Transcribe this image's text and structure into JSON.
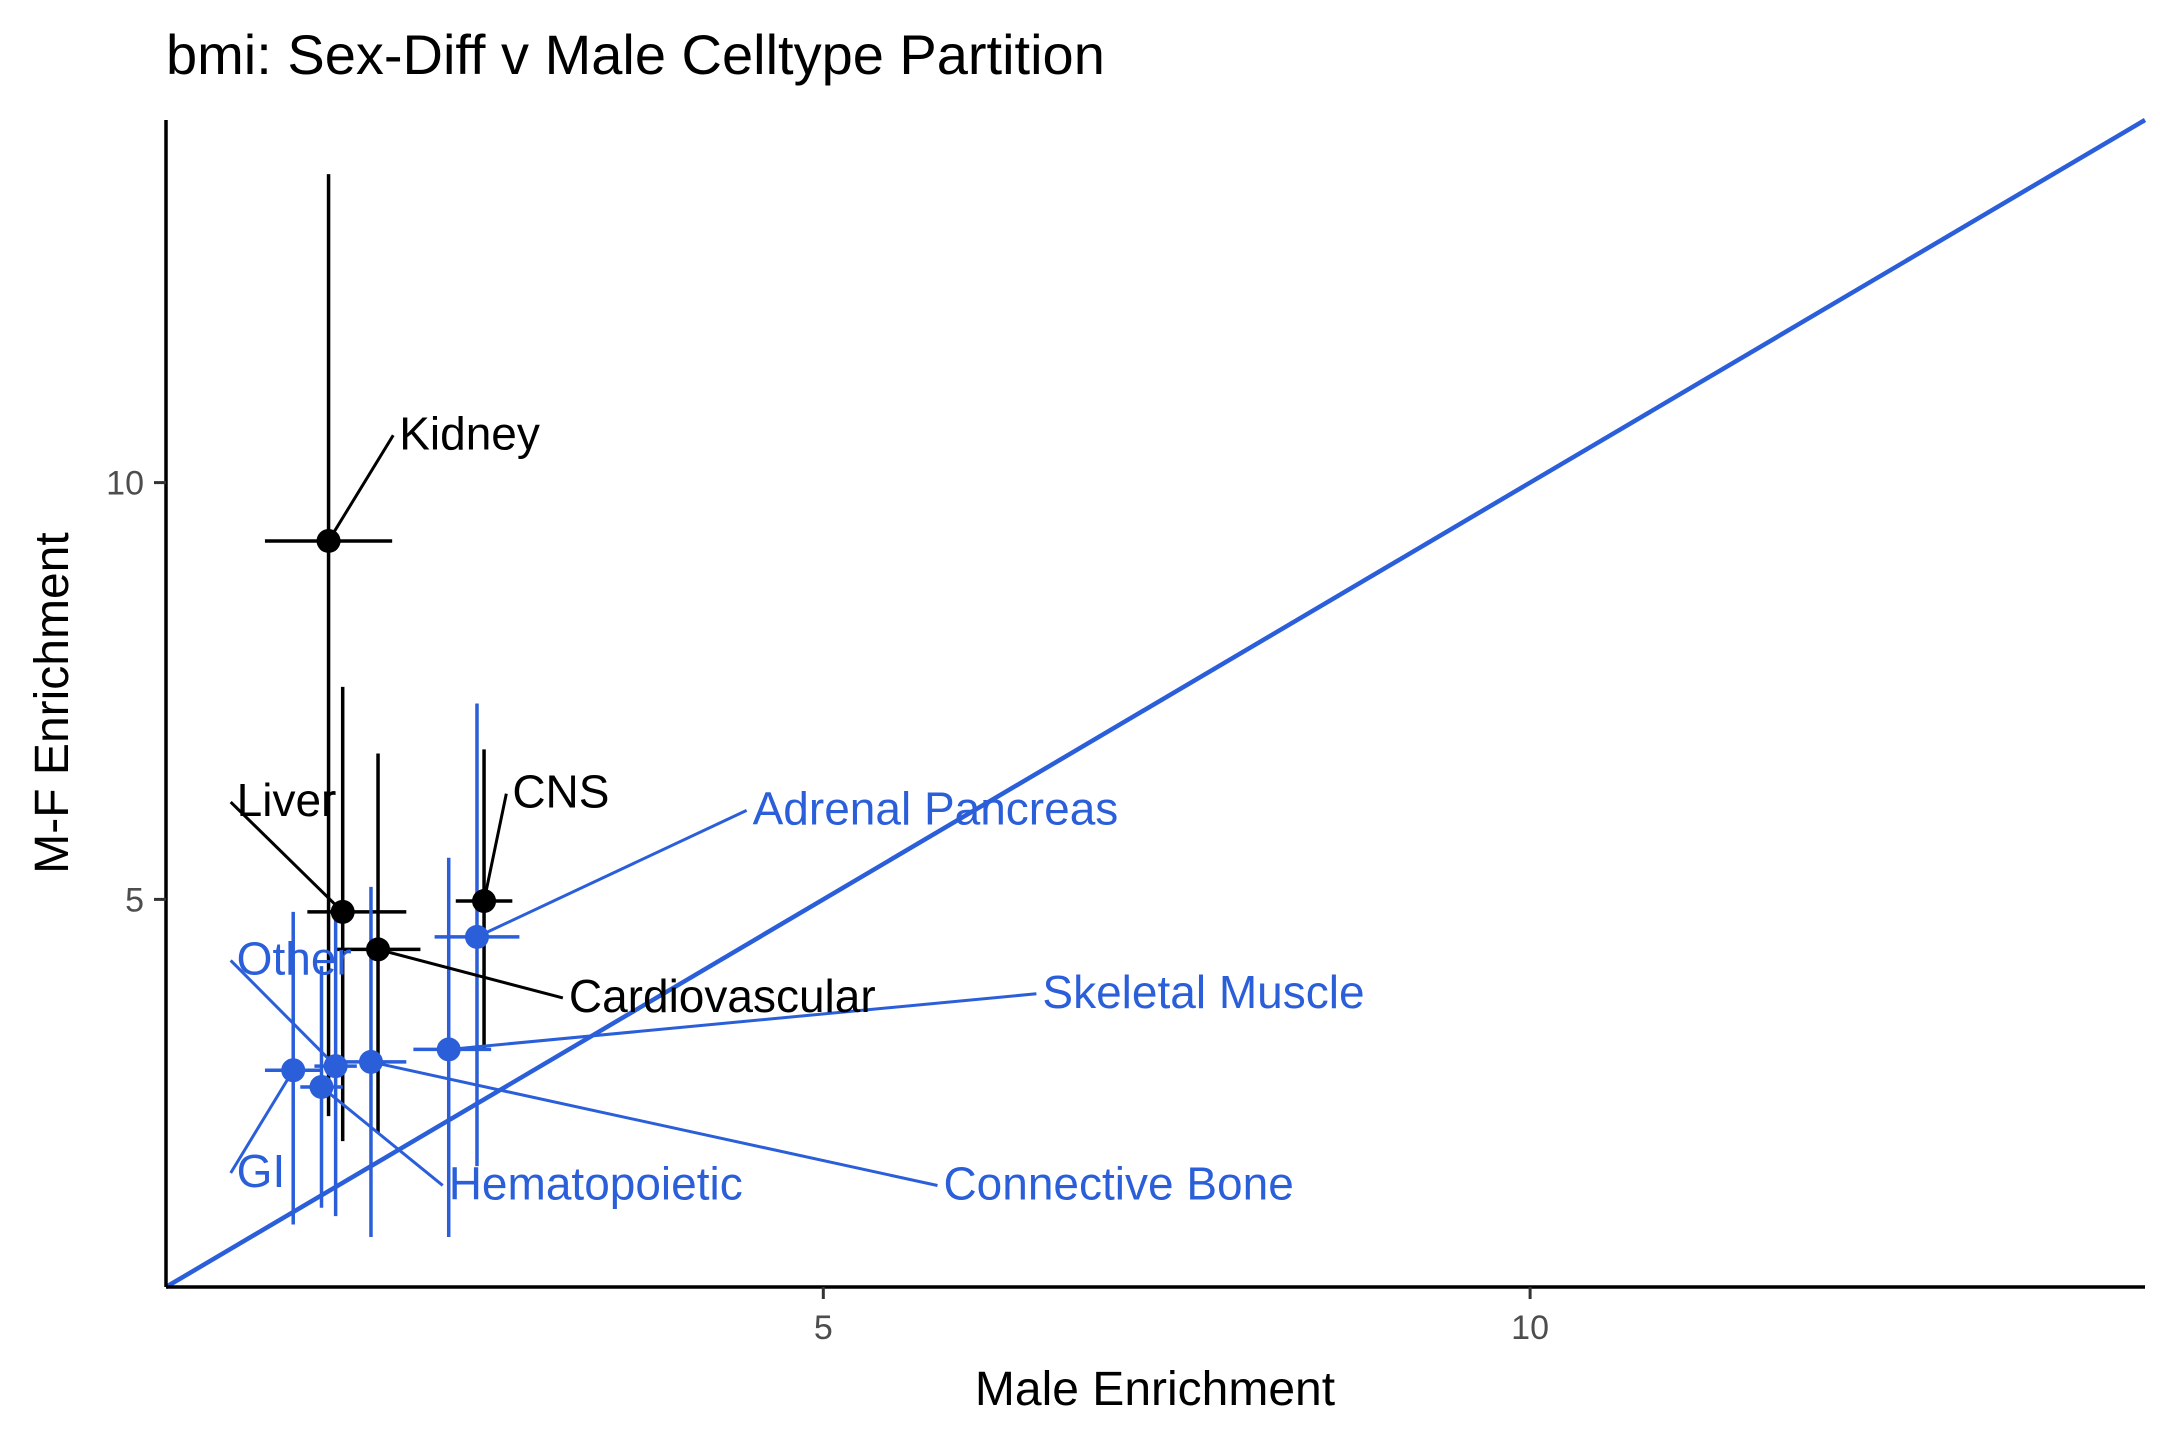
{
  "chart_data": {
    "type": "scatter",
    "title": "bmi: Sex-Diff v Male Celltype Partition",
    "xlabel": "Male Enrichment",
    "ylabel": "M-F Enrichment",
    "xlim": [
      0.35,
      14.35
    ],
    "ylim": [
      0.35,
      14.35
    ],
    "x_ticks": [
      5,
      10
    ],
    "y_ticks": [
      5,
      10
    ],
    "grid": false,
    "legend": "none",
    "reference_line": {
      "type": "identity",
      "slope": 1,
      "intercept": 0,
      "color": "#2b5fd9"
    },
    "colors": {
      "significant": "#000000",
      "not_significant": "#2b5fd9",
      "axis": "#000000",
      "tick_text": "#4d4d4d"
    },
    "points": [
      {
        "label": "Kidney",
        "x": 1.5,
        "y": 9.3,
        "x_lo": 1.05,
        "x_hi": 1.95,
        "y_lo": 2.4,
        "y_hi": 13.7,
        "color": "#000000",
        "label_x": 2.0,
        "label_y": 10.4
      },
      {
        "label": "Liver",
        "x": 1.6,
        "y": 4.85,
        "x_lo": 1.35,
        "x_hi": 2.05,
        "y_lo": 2.1,
        "y_hi": 7.55,
        "color": "#000000",
        "label_x": 0.85,
        "label_y": 6.0
      },
      {
        "label": "CNS",
        "x": 2.6,
        "y": 4.98,
        "x_lo": 2.4,
        "x_hi": 2.8,
        "y_lo": 3.2,
        "y_hi": 6.8,
        "color": "#000000",
        "label_x": 2.8,
        "label_y": 6.1
      },
      {
        "label": "Cardiovascular",
        "x": 1.85,
        "y": 4.4,
        "x_lo": 1.55,
        "x_hi": 2.15,
        "y_lo": 2.2,
        "y_hi": 6.75,
        "color": "#000000",
        "label_x": 3.2,
        "label_y": 3.65
      },
      {
        "label": "Adrenal Pancreas",
        "x": 2.55,
        "y": 4.55,
        "x_lo": 2.25,
        "x_hi": 2.85,
        "y_lo": 1.8,
        "y_hi": 7.35,
        "color": "#2b5fd9",
        "label_x": 4.5,
        "label_y": 5.9
      },
      {
        "label": "Skeletal Muscle",
        "x": 2.35,
        "y": 3.2,
        "x_lo": 2.1,
        "x_hi": 2.65,
        "y_lo": 0.95,
        "y_hi": 5.5,
        "color": "#2b5fd9",
        "label_x": 6.55,
        "label_y": 3.7
      },
      {
        "label": "Other",
        "x": 1.55,
        "y": 3.0,
        "x_lo": 1.4,
        "x_hi": 1.7,
        "y_lo": 1.2,
        "y_hi": 4.8,
        "color": "#2b5fd9",
        "label_x": 0.85,
        "label_y": 4.1
      },
      {
        "label": "GI",
        "x": 1.25,
        "y": 2.95,
        "x_lo": 1.05,
        "x_hi": 1.45,
        "y_lo": 1.1,
        "y_hi": 4.85,
        "color": "#2b5fd9",
        "label_x": 0.85,
        "label_y": 1.55
      },
      {
        "label": "Hematopoietic",
        "x": 1.45,
        "y": 2.75,
        "x_lo": 1.3,
        "x_hi": 1.6,
        "y_lo": 1.3,
        "y_hi": 4.2,
        "color": "#2b5fd9",
        "label_x": 2.35,
        "label_y": 1.4
      },
      {
        "label": "Connective Bone",
        "x": 1.8,
        "y": 3.05,
        "x_lo": 1.6,
        "x_hi": 2.05,
        "y_lo": 0.95,
        "y_hi": 5.15,
        "color": "#2b5fd9",
        "label_x": 5.85,
        "label_y": 1.4
      }
    ]
  }
}
